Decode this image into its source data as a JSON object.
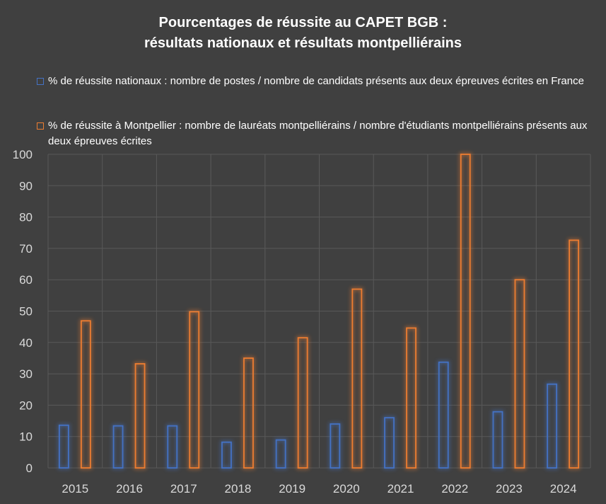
{
  "chart_data": {
    "type": "bar",
    "title_line1": "Pourcentages de réussite au CAPET BGB :",
    "title_line2": "résultats nationaux et résultats montpelliérains",
    "categories": [
      "2015",
      "2016",
      "2017",
      "2018",
      "2019",
      "2020",
      "2021",
      "2022",
      "2023",
      "2024"
    ],
    "series": [
      {
        "name": "% de réussite nationaux : nombre de postes / nombre de candidats présents aux deux épreuves écrites en France",
        "color": "#4472c4",
        "values": [
          13.6,
          13.4,
          13.4,
          8.2,
          8.9,
          14.0,
          16.0,
          33.7,
          17.9,
          26.7
        ]
      },
      {
        "name": "% de réussite à Montpellier : nombre de lauréats montpelliérains / nombre d'étudiants montpelliérains présents aux deux épreuves écrites",
        "color": "#ed7d31",
        "values": [
          46.9,
          33.2,
          49.8,
          35.0,
          41.5,
          57.0,
          44.6,
          100,
          60.0,
          72.6
        ]
      }
    ],
    "ylim": [
      0,
      100
    ],
    "yticks": [
      0,
      10,
      20,
      30,
      40,
      50,
      60,
      70,
      80,
      90,
      100
    ],
    "grid": true,
    "legend_position": "top"
  },
  "colors": {
    "background": "#404040",
    "grid": "#595959",
    "text": "#d9d9d9"
  }
}
